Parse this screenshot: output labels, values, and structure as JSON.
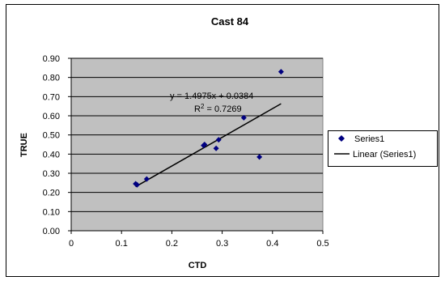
{
  "chart_data": {
    "type": "scatter",
    "title": "Cast 84",
    "xlabel": "CTD",
    "ylabel": "TRUE",
    "xlim": [
      0,
      0.5
    ],
    "ylim": [
      0,
      0.9
    ],
    "x_ticks": [
      "0",
      "0.1",
      "0.2",
      "0.3",
      "0.4",
      "0.5"
    ],
    "y_ticks": [
      "0.00",
      "0.10",
      "0.20",
      "0.30",
      "0.40",
      "0.50",
      "0.60",
      "0.70",
      "0.80",
      "0.90"
    ],
    "grid": "horizontal",
    "plot_background": "#c0c0c0",
    "series": [
      {
        "name": "Series1",
        "color": "#000080",
        "marker": "diamond",
        "points": [
          {
            "x": 0.128,
            "y": 0.245
          },
          {
            "x": 0.131,
            "y": 0.24
          },
          {
            "x": 0.15,
            "y": 0.27
          },
          {
            "x": 0.263,
            "y": 0.445
          },
          {
            "x": 0.265,
            "y": 0.45
          },
          {
            "x": 0.288,
            "y": 0.43
          },
          {
            "x": 0.293,
            "y": 0.475
          },
          {
            "x": 0.343,
            "y": 0.59
          },
          {
            "x": 0.374,
            "y": 0.385
          },
          {
            "x": 0.417,
            "y": 0.83
          }
        ]
      }
    ],
    "trendline": {
      "name": "Linear (Series1)",
      "slope": 1.4975,
      "intercept": 0.0384,
      "x_range": [
        0.128,
        0.417
      ],
      "color": "#000000",
      "equation_label": "y = 1.4975x + 0.0384",
      "r2_prefix": "R",
      "r2_exponent": "2",
      "r2_value": " = 0.7269"
    },
    "legend": {
      "position": "right",
      "entries": [
        "Series1",
        "Linear (Series1)"
      ]
    }
  }
}
